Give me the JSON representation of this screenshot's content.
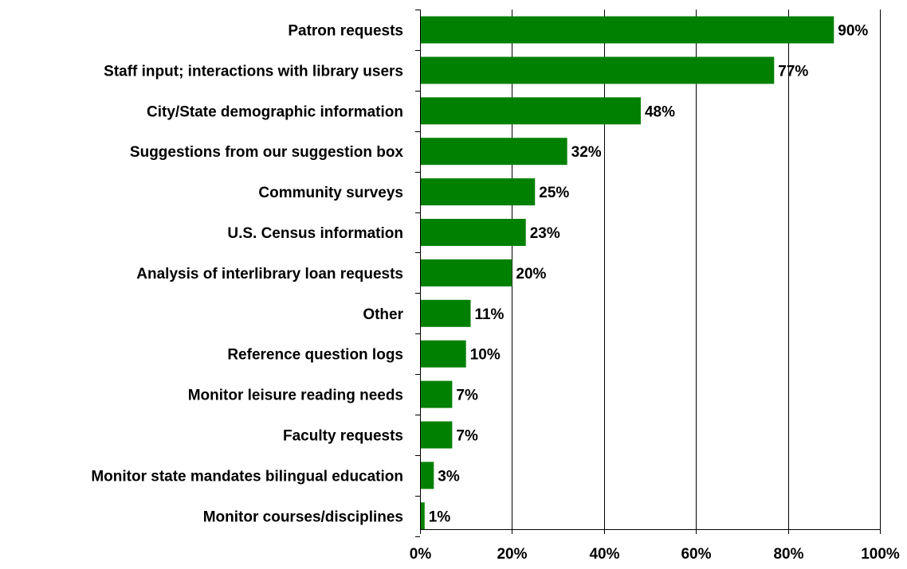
{
  "chart_data": {
    "type": "bar",
    "orientation": "horizontal",
    "categories": [
      "Patron requests",
      "Staff input; interactions with library users",
      "City/State demographic information",
      "Suggestions from our suggestion box",
      "Community surveys",
      "U.S. Census information",
      "Analysis of interlibrary loan requests",
      "Other",
      "Reference question logs",
      "Monitor leisure reading needs",
      "Faculty requests",
      "Monitor state mandates bilingual education",
      "Monitor courses/disciplines"
    ],
    "values": [
      90,
      77,
      48,
      32,
      25,
      23,
      20,
      11,
      10,
      7,
      7,
      3,
      1
    ],
    "value_labels": [
      "90%",
      "77%",
      "48%",
      "32%",
      "25%",
      "23%",
      "20%",
      "11%",
      "10%",
      "7%",
      "7%",
      "3%",
      "1%"
    ],
    "xlim": [
      0,
      100
    ],
    "x_ticks": [
      "0%",
      "20%",
      "40%",
      "60%",
      "80%",
      "100%"
    ],
    "xlabel": "",
    "ylabel": "",
    "title": "",
    "grid": "vertical",
    "colors": {
      "bar": "#008000",
      "grid": "#000000"
    }
  }
}
